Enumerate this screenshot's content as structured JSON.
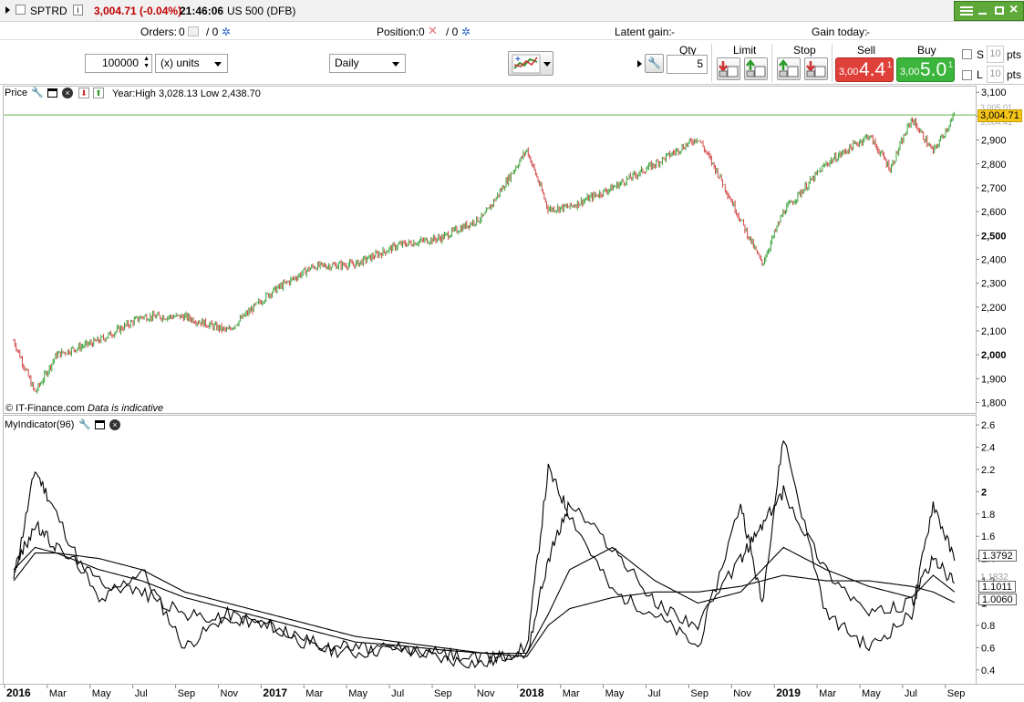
{
  "title_bar": {
    "symbol": "SPTRD",
    "price_change": "3,004.71 (-0.04%)",
    "time": "21:46:06",
    "market": "US 500 (DFB)",
    "controls": [
      "minimize",
      "restore",
      "close"
    ]
  },
  "info_bar": {
    "orders_label": "Orders:",
    "orders_value": "0",
    "orders_value2": "/ 0",
    "position_label": "Position:",
    "position_value": "0",
    "position_value2": "/ 0",
    "latent_gain_label": "Latent gain:",
    "latent_gain_value": "-",
    "gain_today_label": "Gain today:",
    "gain_today_value": "-"
  },
  "toolbar": {
    "quantity": "100000",
    "units": "(x) units",
    "period": "Daily",
    "qty_label": "Qty",
    "qty_value": "5",
    "limit_label": "Limit",
    "stop_label": "Stop",
    "sell_label": "Sell",
    "buy_label": "Buy",
    "sell_price_small": "3,00",
    "sell_price_big": "4.4",
    "sell_price_sup": "1",
    "buy_price_small": "3,00",
    "buy_price_big": "5.0",
    "buy_price_sup": "1",
    "s_label": "S",
    "l_label": "L",
    "s_pts": "10",
    "l_pts": "10",
    "pts_label": "pts",
    "colors": {
      "sell": "#e0403a",
      "buy": "#3cb53c"
    }
  },
  "price_panel": {
    "label": "Price",
    "stats": "Year:High 3,028.13 Low 2,438.70",
    "watermark": "© IT-Finance.com",
    "disclaimer": "Data is indicative",
    "current_price": "3,004.71",
    "ticks": [
      "3,100",
      "3,000",
      "2,900",
      "2,800",
      "2,700",
      "2,600",
      "2,500",
      "2,400",
      "2,300",
      "2,200",
      "2,100",
      "2,000",
      "1,900",
      "1,800"
    ],
    "tick_values": [
      3100,
      3000,
      2900,
      2800,
      2700,
      2600,
      2500,
      2400,
      2300,
      2200,
      2100,
      2000,
      1900,
      1800
    ],
    "bold_ticks": [
      "3,000",
      "2,500",
      "2,000"
    ],
    "ghost_labels": [
      "3,005.01",
      "3,004.41"
    ]
  },
  "indicator_panel": {
    "label": "MyIndicator(96)",
    "ticks": [
      "2.6",
      "2.4",
      "2.2",
      "2",
      "1.8",
      "1.6",
      "1.4",
      "1.2",
      "1",
      "0.8",
      "0.6",
      "0.4"
    ],
    "tick_values": [
      2.6,
      2.4,
      2.2,
      2.0,
      1.8,
      1.6,
      1.4,
      1.2,
      1.0,
      0.8,
      0.6,
      0.4
    ],
    "bold_ticks": [
      "2",
      "1"
    ],
    "values": [
      "1.3792",
      "1.1011",
      "1.0060"
    ],
    "ghost_label": "1.1832"
  },
  "x_axis": {
    "labels": [
      {
        "t": "2016",
        "bold": true
      },
      {
        "t": "Mar"
      },
      {
        "t": "May"
      },
      {
        "t": "Jul"
      },
      {
        "t": "Sep"
      },
      {
        "t": "Nov"
      },
      {
        "t": "2017",
        "bold": true
      },
      {
        "t": "Mar"
      },
      {
        "t": "May"
      },
      {
        "t": "Jul"
      },
      {
        "t": "Sep"
      },
      {
        "t": "Nov"
      },
      {
        "t": "2018",
        "bold": true
      },
      {
        "t": "Mar"
      },
      {
        "t": "May"
      },
      {
        "t": "Jul"
      },
      {
        "t": "Sep"
      },
      {
        "t": "Nov"
      },
      {
        "t": "2019",
        "bold": true
      },
      {
        "t": "Mar"
      },
      {
        "t": "May"
      },
      {
        "t": "Jul"
      },
      {
        "t": "Sep"
      }
    ]
  },
  "chart_data": [
    {
      "type": "line",
      "title": "Price",
      "x": [
        "2016-01",
        "2016-02",
        "2016-03",
        "2016-05",
        "2016-07",
        "2016-09",
        "2016-11",
        "2017-01",
        "2017-03",
        "2017-05",
        "2017-07",
        "2017-09",
        "2017-11",
        "2018-01",
        "2018-02",
        "2018-03",
        "2018-05",
        "2018-07",
        "2018-09",
        "2018-10",
        "2018-12",
        "2019-01",
        "2019-03",
        "2019-05",
        "2019-06",
        "2019-07",
        "2019-08",
        "2019-09"
      ],
      "series": [
        {
          "values": [
            2060,
            1840,
            2000,
            2060,
            2160,
            2160,
            2100,
            2260,
            2370,
            2380,
            2460,
            2490,
            2580,
            2860,
            2610,
            2620,
            2700,
            2800,
            2910,
            2750,
            2380,
            2600,
            2800,
            2920,
            2780,
            2990,
            2850,
            3004
          ]
        }
      ],
      "ylim": [
        1760,
        3120
      ]
    },
    {
      "type": "line",
      "title": "MyIndicator(96)",
      "x": [
        "2016-01",
        "2016-02",
        "2016-03",
        "2016-05",
        "2016-07",
        "2016-09",
        "2016-11",
        "2017-01",
        "2017-03",
        "2017-05",
        "2017-07",
        "2017-09",
        "2017-11",
        "2018-01",
        "2018-02",
        "2018-03",
        "2018-05",
        "2018-07",
        "2018-09",
        "2018-11",
        "2018-12",
        "2019-01",
        "2019-03",
        "2019-05",
        "2019-07",
        "2019-08",
        "2019-09"
      ],
      "series": [
        {
          "values": [
            1.2,
            2.2,
            1.8,
            1.0,
            1.3,
            0.6,
            0.9,
            0.8,
            0.6,
            0.55,
            0.6,
            0.5,
            0.45,
            0.6,
            2.2,
            1.8,
            1.1,
            0.9,
            0.6,
            1.9,
            1.0,
            2.5,
            0.9,
            0.6,
            0.9,
            1.9,
            1.38
          ]
        },
        {
          "values": [
            1.3,
            1.7,
            1.5,
            1.2,
            1.1,
            0.9,
            0.85,
            0.8,
            0.65,
            0.6,
            0.58,
            0.55,
            0.5,
            0.55,
            1.4,
            1.9,
            1.5,
            1.0,
            0.8,
            1.4,
            1.7,
            2.0,
            1.3,
            0.9,
            1.0,
            1.4,
            1.18
          ]
        },
        {
          "values": [
            1.2,
            1.45,
            1.45,
            1.3,
            1.2,
            1.05,
            0.95,
            0.85,
            0.75,
            0.65,
            0.62,
            0.58,
            0.55,
            0.55,
            0.9,
            1.3,
            1.5,
            1.2,
            1.0,
            1.1,
            1.3,
            1.5,
            1.3,
            1.15,
            1.05,
            1.25,
            1.1
          ]
        },
        {
          "values": [
            1.3,
            1.5,
            1.45,
            1.4,
            1.3,
            1.1,
            1.0,
            0.9,
            0.8,
            0.7,
            0.65,
            0.6,
            0.55,
            0.52,
            0.8,
            0.95,
            1.05,
            1.1,
            1.1,
            1.15,
            1.2,
            1.25,
            1.2,
            1.2,
            1.15,
            1.1,
            1.006
          ]
        }
      ],
      "ylim": [
        0.3,
        2.65
      ]
    }
  ]
}
